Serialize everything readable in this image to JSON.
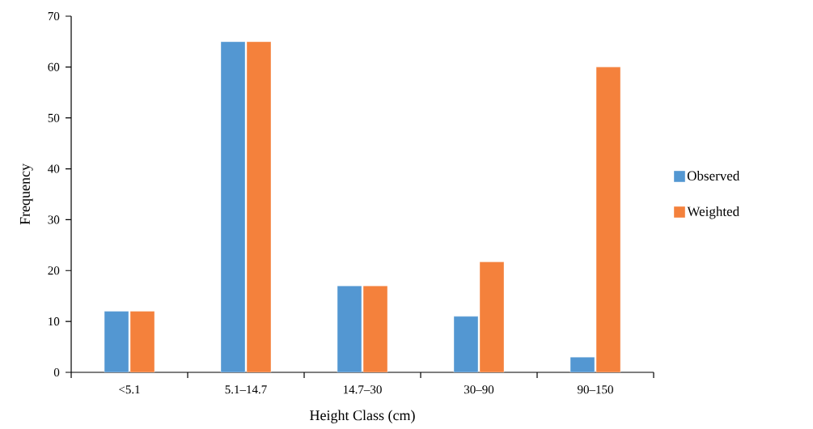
{
  "chart_data": {
    "type": "bar",
    "xlabel": "Height Class (cm)",
    "ylabel": "Frequency",
    "categories": [
      "<5.1",
      "5.1–14.7",
      "14.7–30",
      "30–90",
      "90–150"
    ],
    "series": [
      {
        "name": "Observed",
        "color": "#5397d2",
        "values": [
          12,
          65,
          17,
          11,
          3
        ]
      },
      {
        "name": "Weighted",
        "color": "#f4813c",
        "values": [
          12,
          65,
          17,
          21.7,
          60
        ]
      }
    ],
    "ylim": [
      0,
      70
    ],
    "yticks": [
      0,
      10,
      20,
      30,
      40,
      50,
      60,
      70
    ],
    "grid": false,
    "legend": "right"
  }
}
